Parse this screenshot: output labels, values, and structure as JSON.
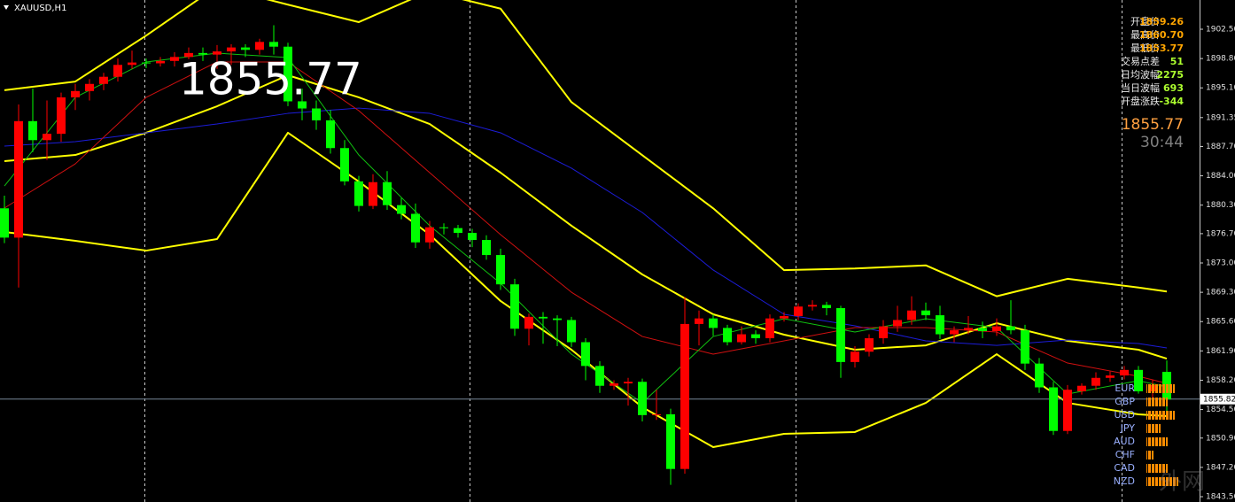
{
  "chart_data": {
    "type": "candlestick",
    "symbol": "XAUUSD,H1",
    "last_price_label": "1855.77",
    "open": [
      1879.9,
      1876.2,
      1890.9,
      1888.5,
      1889.3,
      1893.9,
      1894.7,
      1895.6,
      1896.5,
      1898.0,
      1898.3,
      1898.2,
      1898.5,
      1899.0,
      1899.5,
      1899.3,
      1899.7,
      1900.2,
      1899.9,
      1900.9,
      1900.3,
      1893.4,
      1892.5,
      1891.0,
      1887.5,
      1883.3,
      1880.2,
      1883.2,
      1880.3,
      1879.2,
      1875.6,
      1877.5,
      1877.4,
      1876.8,
      1875.9,
      1874.0,
      1870.3,
      1864.7,
      1866.2,
      1866.0,
      1865.8,
      1863.0,
      1860.0,
      1857.5,
      1857.8,
      1858.0,
      1853.8,
      1853.9,
      1847.0,
      1865.3,
      1866.0,
      1864.8,
      1863.0,
      1864.0,
      1863.5,
      1866.0,
      1866.3,
      1867.5,
      1867.7,
      1867.3,
      1860.5,
      1861.8,
      1863.5,
      1865.0,
      1865.8,
      1867.0,
      1866.4,
      1864.0,
      1864.5,
      1864.8,
      1864.4,
      1865.0,
      1864.5,
      1860.3,
      1857.3,
      1851.8,
      1856.8,
      1857.5,
      1858.5,
      1858.8,
      1859.5,
      1856.8,
      1859.26
    ],
    "high": [
      1881.5,
      1893.0,
      1895.0,
      1893.5,
      1894.5,
      1895.6,
      1896.2,
      1897.0,
      1898.8,
      1899.8,
      1898.8,
      1899.0,
      1899.6,
      1900.2,
      1900.2,
      1900.5,
      1900.6,
      1900.6,
      1901.3,
      1903.0,
      1900.8,
      1895.0,
      1893.5,
      1892.3,
      1888.5,
      1884.0,
      1884.2,
      1884.6,
      1881.2,
      1880.5,
      1878.3,
      1878.0,
      1877.8,
      1877.3,
      1876.5,
      1874.8,
      1871.0,
      1866.6,
      1866.8,
      1866.4,
      1866.2,
      1863.5,
      1860.6,
      1858.2,
      1858.5,
      1858.4,
      1857.0,
      1854.6,
      1868.7,
      1867.0,
      1866.5,
      1865.2,
      1865.0,
      1864.5,
      1866.5,
      1866.8,
      1867.9,
      1868.3,
      1868.1,
      1867.6,
      1862.5,
      1864.0,
      1865.8,
      1867.6,
      1868.8,
      1868.0,
      1867.6,
      1865.0,
      1866.3,
      1865.6,
      1866.0,
      1868.3,
      1865.2,
      1861.0,
      1858.0,
      1857.6,
      1857.8,
      1859.2,
      1859.3,
      1860.0,
      1860.0,
      1858.3,
      1860.7
    ],
    "low": [
      1875.5,
      1869.9,
      1887.0,
      1886.0,
      1888.3,
      1892.3,
      1893.5,
      1894.8,
      1895.9,
      1897.5,
      1897.6,
      1897.8,
      1897.8,
      1898.7,
      1898.5,
      1897.5,
      1898.0,
      1899.0,
      1899.3,
      1899.3,
      1892.8,
      1891.0,
      1889.8,
      1886.8,
      1882.8,
      1879.5,
      1879.8,
      1879.7,
      1878.5,
      1874.9,
      1874.8,
      1876.6,
      1876.2,
      1875.0,
      1873.4,
      1869.6,
      1863.8,
      1862.6,
      1862.8,
      1862.5,
      1862.4,
      1858.2,
      1856.6,
      1857.0,
      1855.0,
      1853.0,
      1853.2,
      1845.0,
      1846.4,
      1862.6,
      1863.8,
      1862.6,
      1862.7,
      1862.8,
      1863.0,
      1865.6,
      1865.8,
      1867.0,
      1866.4,
      1858.5,
      1859.8,
      1861.2,
      1862.8,
      1864.3,
      1865.2,
      1865.8,
      1863.4,
      1863.0,
      1864.0,
      1863.5,
      1863.8,
      1864.0,
      1859.5,
      1856.6,
      1851.3,
      1851.4,
      1856.4,
      1857.0,
      1858.0,
      1858.3,
      1856.5,
      1855.5,
      1853.77
    ],
    "close": [
      1876.2,
      1890.9,
      1888.5,
      1889.3,
      1893.9,
      1894.7,
      1895.6,
      1896.5,
      1898.0,
      1898.3,
      1898.2,
      1898.5,
      1899.0,
      1899.5,
      1899.3,
      1899.7,
      1900.2,
      1899.9,
      1900.9,
      1900.3,
      1893.4,
      1892.5,
      1891.0,
      1887.5,
      1883.3,
      1880.2,
      1883.2,
      1880.3,
      1879.2,
      1875.6,
      1877.5,
      1877.4,
      1876.8,
      1875.9,
      1874.0,
      1870.3,
      1864.7,
      1866.2,
      1866.0,
      1865.8,
      1863.0,
      1860.0,
      1857.5,
      1857.8,
      1858.0,
      1853.8,
      1853.9,
      1847.0,
      1865.3,
      1866.0,
      1864.8,
      1863.0,
      1864.0,
      1863.5,
      1866.0,
      1866.3,
      1867.5,
      1867.7,
      1867.3,
      1860.5,
      1861.8,
      1863.5,
      1865.0,
      1865.8,
      1867.0,
      1866.4,
      1864.0,
      1864.5,
      1864.8,
      1864.4,
      1865.0,
      1864.5,
      1860.3,
      1857.3,
      1851.8,
      1857.0,
      1857.5,
      1858.5,
      1858.8,
      1859.5,
      1856.8,
      1857.6,
      1855.77
    ],
    "up_color": "#ff0000",
    "down_color": "#00ff00",
    "ylim": [
      1842.83,
      1906.19
    ],
    "yticks": [
      {
        "value": 1902.5,
        "label": "1902.50"
      },
      {
        "value": 1898.8,
        "label": "1898.80"
      },
      {
        "value": 1895.1,
        "label": "1895.10"
      },
      1891.35,
      {
        "value": 1887.7,
        "label": "1887.70"
      },
      {
        "value": 1884,
        "label": "1884.00"
      },
      {
        "value": 1880.3,
        "label": "1880.30"
      },
      {
        "value": 1876.7,
        "label": "1876.70"
      },
      {
        "value": 1873,
        "label": "1873.00"
      },
      {
        "value": 1869.3,
        "label": "1869.30"
      },
      {
        "value": 1865.6,
        "label": "1865.60"
      },
      {
        "value": 1861.9,
        "label": "1861.90"
      },
      {
        "value": 1858.2,
        "label": "1858.20"
      },
      {
        "value": 1854.5,
        "label": "1854.50"
      },
      {
        "value": 1850.9,
        "label": "1850.90"
      },
      {
        "value": 1847.2,
        "label": "1847.20"
      },
      {
        "value": 1843.5,
        "label": "1843.50"
      }
    ],
    "current_price": 1855.82,
    "current_price_color": "#778899",
    "overlays": [
      {
        "color": "#ffff00",
        "width": 2,
        "x": [
          0,
          5,
          10,
          15,
          20,
          25,
          30,
          35,
          40,
          45,
          50,
          55,
          60,
          65,
          70,
          75,
          80,
          82
        ],
        "values": [
          1894.8,
          1895.9,
          1901.7,
          1907.9,
          1905.6,
          1903.4,
          1907.3,
          1905.1,
          1893.3,
          1886.6,
          1879.9,
          1872.1,
          1872.3,
          1872.7,
          1868.8,
          1871.0,
          1869.9,
          1869.4
        ]
      },
      {
        "color": "#ffff00",
        "width": 2,
        "x": [
          0,
          5,
          10,
          15,
          20,
          25,
          30,
          35,
          40,
          45,
          50,
          55,
          60,
          65,
          70,
          75,
          80,
          82
        ],
        "values": [
          1885.85,
          1886.63,
          1889.43,
          1892.78,
          1896.69,
          1893.9,
          1890.54,
          1884.4,
          1877.7,
          1871.55,
          1866.52,
          1863.95,
          1862.05,
          1862.6,
          1865.4,
          1863.17,
          1862.05,
          1860.93
        ]
      },
      {
        "color": "#ffff00",
        "width": 2,
        "x": [
          0,
          5,
          10,
          15,
          20,
          25,
          30,
          35,
          40,
          45,
          50,
          55,
          60,
          65,
          70,
          75,
          80,
          82
        ],
        "values": [
          1876.91,
          1875.79,
          1874.56,
          1876.02,
          1889.43,
          1883.28,
          1876.58,
          1868.2,
          1862.05,
          1854.8,
          1849.76,
          1851.43,
          1851.66,
          1855.34,
          1861.49,
          1855.34,
          1853.89,
          1853.67
        ]
      },
      {
        "color": "#1c1cd8",
        "width": 1,
        "x": [
          0,
          5,
          10,
          15,
          20,
          25,
          30,
          35,
          40,
          45,
          50,
          55,
          60,
          65,
          70,
          75,
          80,
          82
        ],
        "values": [
          1887.75,
          1888.31,
          1889.43,
          1890.54,
          1891.88,
          1892.55,
          1891.88,
          1889.43,
          1884.96,
          1879.37,
          1872.11,
          1866.52,
          1865.07,
          1863.17,
          1862.6,
          1863.28,
          1862.83,
          1862.27
        ]
      },
      {
        "color": "#d01010",
        "width": 1,
        "x": [
          0,
          5,
          10,
          15,
          20,
          25,
          30,
          35,
          40,
          45,
          50,
          55,
          60,
          65,
          70,
          75,
          80,
          82
        ],
        "values": [
          1879.93,
          1885.51,
          1893.9,
          1898.37,
          1898.37,
          1892.22,
          1884.4,
          1876.58,
          1869.31,
          1863.72,
          1861.49,
          1863.17,
          1864.84,
          1864.84,
          1864.28,
          1860.37,
          1858.7,
          1857.8
        ]
      },
      {
        "color": "#10c010",
        "width": 1,
        "x": [
          0,
          5,
          10,
          15,
          20,
          25,
          30,
          35,
          40,
          45,
          50,
          55,
          60,
          65,
          70,
          75,
          80,
          82
        ],
        "values": [
          1882.72,
          1893.9,
          1898.37,
          1899.48,
          1898.92,
          1886.63,
          1877.7,
          1870.43,
          1861.49,
          1855.34,
          1863.72,
          1865.96,
          1864.28,
          1865.96,
          1864.84,
          1856.46,
          1858.14,
          1857.36
        ]
      }
    ]
  },
  "info_panel": {
    "rows": [
      {
        "label": "开盘价",
        "value": "1859.26"
      },
      {
        "label": "最高价",
        "value": "1860.70"
      },
      {
        "label": "最低价",
        "value": "1853.77"
      },
      {
        "label": "交易点差",
        "value": "51"
      },
      {
        "label": "日均波幅",
        "value": "2275"
      },
      {
        "label": "当日波幅",
        "value": "693"
      },
      {
        "label": "开盘涨跌",
        "value": "-344"
      }
    ],
    "price": "1855.77",
    "countdown": "30:44"
  },
  "currency_strength": {
    "rows": [
      {
        "label": "EUR",
        "value": 8
      },
      {
        "label": "GBP",
        "value": 6
      },
      {
        "label": "USD",
        "value": 8
      },
      {
        "label": "JPY",
        "value": 4
      },
      {
        "label": "AUD",
        "value": 6
      },
      {
        "label": "CHF",
        "value": 2
      },
      {
        "label": "CAD",
        "value": 6
      },
      {
        "label": "NZD",
        "value": 9
      }
    ]
  },
  "watermark": "外网"
}
